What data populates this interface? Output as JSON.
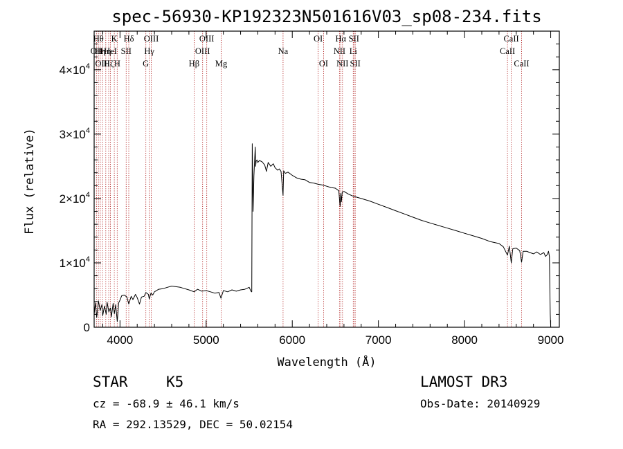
{
  "chart_data": {
    "type": "line",
    "title": "spec-56930-KP192323N501616V03_sp08-234.fits",
    "xlabel": "Wavelength (Å)",
    "ylabel": "Flux (relative)",
    "xlim": [
      3700,
      9100
    ],
    "ylim": [
      0,
      46000
    ],
    "x_ticks": [
      4000,
      5000,
      6000,
      7000,
      8000,
      9000
    ],
    "y_ticks": [
      {
        "value": 0,
        "mantissa": "0",
        "exponent": ""
      },
      {
        "value": 10000,
        "mantissa": "1×10",
        "exponent": "4"
      },
      {
        "value": 20000,
        "mantissa": "2×10",
        "exponent": "4"
      },
      {
        "value": 30000,
        "mantissa": "3×10",
        "exponent": "4"
      },
      {
        "value": 40000,
        "mantissa": "4×10",
        "exponent": "4"
      }
    ],
    "line_color": "#000000",
    "marker_color": "#b22222",
    "series": [
      {
        "name": "flux",
        "x": [
          3700,
          3715,
          3730,
          3750,
          3770,
          3790,
          3800,
          3820,
          3840,
          3850,
          3870,
          3890,
          3900,
          3920,
          3935,
          3950,
          3968,
          3985,
          4000,
          4020,
          4050,
          4080,
          4102,
          4130,
          4150,
          4180,
          4200,
          4226,
          4250,
          4280,
          4300,
          4330,
          4340,
          4360,
          4380,
          4400,
          4450,
          4500,
          4550,
          4600,
          4650,
          4700,
          4750,
          4800,
          4861,
          4900,
          4950,
          5000,
          5050,
          5100,
          5150,
          5172,
          5200,
          5250,
          5300,
          5350,
          5400,
          5450,
          5500,
          5520,
          5530,
          5535,
          5540,
          5545,
          5555,
          5570,
          5575,
          5580,
          5590,
          5600,
          5620,
          5650,
          5680,
          5700,
          5720,
          5750,
          5780,
          5800,
          5830,
          5850,
          5870,
          5893,
          5900,
          5920,
          5950,
          6000,
          6050,
          6100,
          6150,
          6200,
          6250,
          6300,
          6350,
          6400,
          6450,
          6500,
          6540,
          6555,
          6563,
          6570,
          6580,
          6600,
          6650,
          6700,
          6750,
          6800,
          6900,
          7000,
          7100,
          7200,
          7300,
          7400,
          7500,
          7600,
          7700,
          7800,
          7900,
          8000,
          8100,
          8200,
          8300,
          8400,
          8450,
          8498,
          8520,
          8542,
          8560,
          8600,
          8640,
          8662,
          8680,
          8720,
          8760,
          8800,
          8840,
          8880,
          8920,
          8940,
          8960,
          8975,
          8985,
          8990,
          8995,
          9000
        ],
        "y": [
          2000,
          3800,
          1500,
          4100,
          2600,
          3500,
          1800,
          3300,
          2000,
          3900,
          2400,
          3000,
          1600,
          3700,
          2100,
          3500,
          900,
          3800,
          4200,
          4900,
          5000,
          4700,
          3600,
          4800,
          4300,
          5100,
          4600,
          3600,
          4700,
          4800,
          5400,
          5100,
          4400,
          5300,
          5000,
          5500,
          5900,
          6000,
          6200,
          6400,
          6300,
          6200,
          6000,
          5800,
          5500,
          5900,
          5600,
          5700,
          5500,
          5300,
          5400,
          4500,
          5700,
          5500,
          5800,
          5600,
          5800,
          5900,
          6200,
          5600,
          5500,
          28500,
          23000,
          18000,
          23500,
          28000,
          25000,
          25800,
          26000,
          25600,
          25900,
          25700,
          25200,
          24200,
          25600,
          25000,
          25400,
          24800,
          24400,
          24600,
          24200,
          20500,
          24300,
          23900,
          24100,
          23600,
          23200,
          23000,
          22900,
          22500,
          22400,
          22200,
          22100,
          21900,
          21700,
          21600,
          21200,
          18800,
          20800,
          19500,
          21000,
          21100,
          20700,
          20400,
          20200,
          20000,
          19600,
          19100,
          18600,
          18100,
          17600,
          17100,
          16600,
          16200,
          15800,
          15400,
          15000,
          14600,
          14200,
          13800,
          13300,
          13000,
          12500,
          11200,
          12600,
          10000,
          12200,
          12300,
          11900,
          10100,
          11800,
          11800,
          11600,
          11400,
          11700,
          11300,
          11600,
          11000,
          11300,
          11800,
          11000,
          6000,
          2000,
          0
        ]
      }
    ],
    "markers": [
      {
        "x": 3727,
        "row": 1,
        "label": "OII"
      },
      {
        "x": 3750,
        "row": 0,
        "label": "Hθ"
      },
      {
        "x": 3771,
        "row": 1,
        "label": "Hη"
      },
      {
        "x": 3798,
        "row": 2,
        "label": "OIII"
      },
      {
        "x": 3835,
        "row": 1,
        "label": "Hη"
      },
      {
        "x": 3869,
        "row": 2,
        "label": "Hζ"
      },
      {
        "x": 3889,
        "row": 1,
        "label": "HeI"
      },
      {
        "x": 3934,
        "row": 0,
        "label": "K"
      },
      {
        "x": 3968,
        "row": 2,
        "label": "H"
      },
      {
        "x": 4072,
        "row": 1,
        "label": "SII"
      },
      {
        "x": 4102,
        "row": 0,
        "label": "Hδ"
      },
      {
        "x": 4300,
        "row": 2,
        "label": "G"
      },
      {
        "x": 4340,
        "row": 1,
        "label": "Hγ"
      },
      {
        "x": 4363,
        "row": 0,
        "label": "OIII"
      },
      {
        "x": 4861,
        "row": 2,
        "label": "Hβ"
      },
      {
        "x": 4959,
        "row": 1,
        "label": "OIII"
      },
      {
        "x": 5007,
        "row": 0,
        "label": "OIII"
      },
      {
        "x": 5175,
        "row": 2,
        "label": "Mg"
      },
      {
        "x": 5893,
        "row": 1,
        "label": "Na"
      },
      {
        "x": 6300,
        "row": 0,
        "label": "OI"
      },
      {
        "x": 6364,
        "row": 2,
        "label": "OI"
      },
      {
        "x": 6548,
        "row": 1,
        "label": "NII"
      },
      {
        "x": 6563,
        "row": 0,
        "label": "Hα"
      },
      {
        "x": 6583,
        "row": 2,
        "label": "NII"
      },
      {
        "x": 6708,
        "row": 1,
        "label": "Li"
      },
      {
        "x": 6716,
        "row": 0,
        "label": "SII"
      },
      {
        "x": 6731,
        "row": 2,
        "label": "SII"
      },
      {
        "x": 8498,
        "row": 1,
        "label": "CaII"
      },
      {
        "x": 8542,
        "row": 0,
        "label": "CaII"
      },
      {
        "x": 8662,
        "row": 2,
        "label": "CaII"
      }
    ]
  },
  "info": {
    "class": "STAR",
    "subclass": "K5",
    "survey": "LAMOST DR3",
    "redshift": "cz = -68.9 ± 46.1 km/s",
    "obs_date": "Obs-Date: 20140929",
    "coords": "RA = 292.13529, DEC =  50.02154"
  }
}
